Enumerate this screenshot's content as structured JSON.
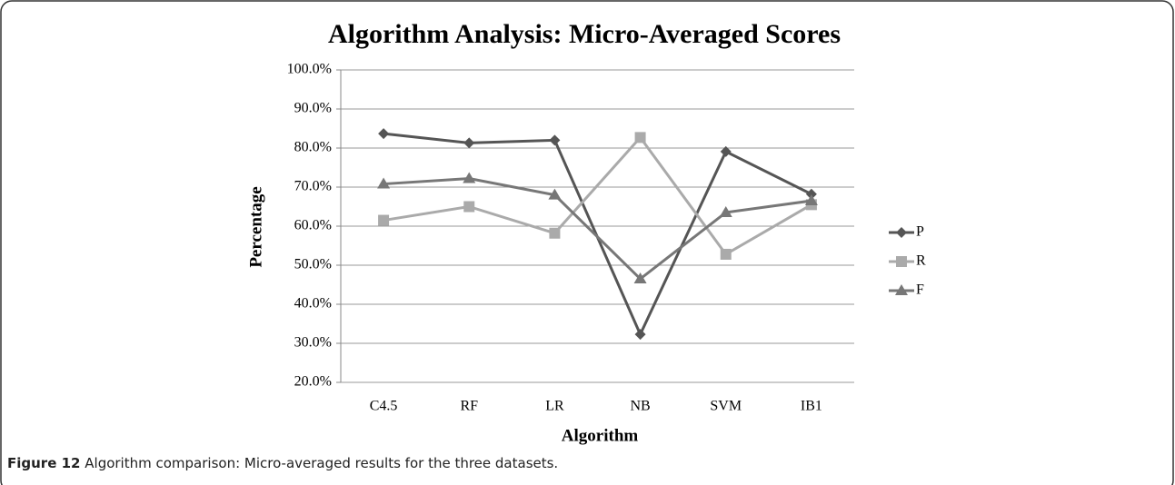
{
  "chart_data": {
    "type": "line",
    "title": "Algorithm Analysis: Micro-Averaged Scores",
    "x_label": "Algorithm",
    "y_label": "Percentage",
    "categories": [
      "C4.5",
      "RF",
      "LR",
      "NB",
      "SVM",
      "IB1"
    ],
    "series": [
      {
        "name": "P",
        "color": "#555555",
        "marker": "diamond",
        "values": [
          83.7,
          81.3,
          82.0,
          32.3,
          79.1,
          68.2
        ]
      },
      {
        "name": "R",
        "color": "#aaaaaa",
        "marker": "square",
        "values": [
          61.5,
          65.0,
          58.2,
          82.7,
          52.8,
          65.5
        ]
      },
      {
        "name": "F",
        "color": "#777777",
        "marker": "triangle",
        "values": [
          70.8,
          72.2,
          68.0,
          46.5,
          63.5,
          66.5
        ]
      }
    ],
    "ylim": [
      20,
      100
    ],
    "yticks": [
      {
        "value": 20,
        "label": "20.0%"
      },
      {
        "value": 30,
        "label": "30.0%"
      },
      {
        "value": 40,
        "label": "40.0%"
      },
      {
        "value": 50,
        "label": "50.0%"
      },
      {
        "value": 60,
        "label": "60.0%"
      },
      {
        "value": 70,
        "label": "70.0%"
      },
      {
        "value": 80,
        "label": "80.0%"
      },
      {
        "value": 90,
        "label": "90.0%"
      },
      {
        "value": 100,
        "label": "100.0%"
      }
    ],
    "grid": true,
    "legend": "right"
  },
  "caption": {
    "label": "Figure 12",
    "text": "Algorithm comparison: Micro-averaged results for the three datasets."
  }
}
